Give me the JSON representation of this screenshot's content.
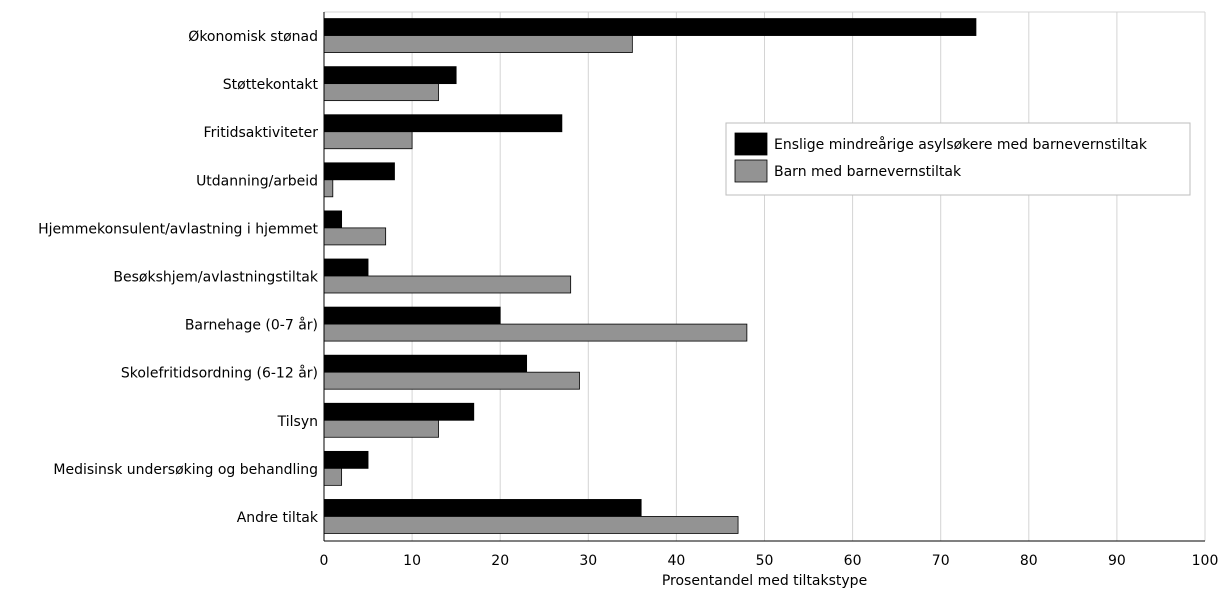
{
  "chart_data": {
    "type": "bar",
    "orientation": "horizontal",
    "title": "",
    "xlabel": "Prosentandel med tiltakstype",
    "ylabel": "",
    "xlim": [
      0,
      100
    ],
    "xticks": [
      0,
      10,
      20,
      30,
      40,
      50,
      60,
      70,
      80,
      90,
      100
    ],
    "grid": true,
    "legend_position": "right",
    "categories": [
      "Økonomisk stønad",
      "Støttekontakt",
      "Fritidsaktiviteter",
      "Utdanning/arbeid",
      "Hjemmekonsulent/avlastning i hjemmet",
      "Besøkshjem/avlastningstiltak",
      "Barnehage (0-7 år)",
      "Skolefritidsordning (6-12 år)",
      "Tilsyn",
      "Medisinsk undersøking og behandling",
      "Andre tiltak"
    ],
    "series": [
      {
        "name": "Enslige mindreårige asylsøkere med barnevernstiltak",
        "color": "#000000",
        "values": [
          74,
          15,
          27,
          8,
          2,
          5,
          20,
          23,
          17,
          5,
          36
        ]
      },
      {
        "name": "Barn med barnevernstiltak",
        "color": "#939393",
        "values": [
          35,
          13,
          10,
          1,
          7,
          28,
          48,
          29,
          13,
          2,
          47
        ]
      }
    ]
  }
}
